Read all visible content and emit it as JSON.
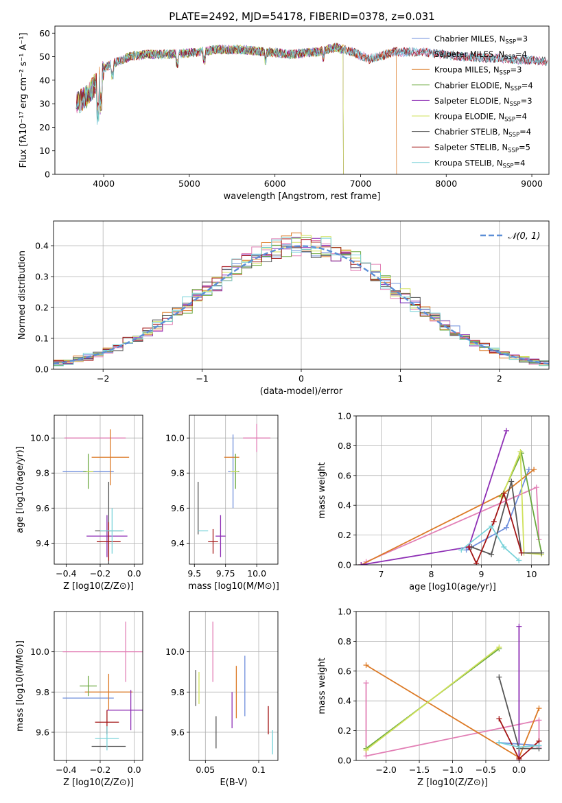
{
  "figure_title": "PLATE=2492, MJD=54178, FIBERID=0378, z=0.031",
  "colors": {
    "Chabrier MILES": "#6f8fdc",
    "Salpeter MILES": "#e27fb5",
    "Kroupa MILES": "#dc7a26",
    "Chabrier ELODIE": "#6aa83e",
    "Salpeter ELODIE": "#8e2fb5",
    "Kroupa ELODIE": "#cfe15a",
    "Chabrier STELIB": "#555555",
    "Salpeter STELIB": "#a31515",
    "Kroupa STELIB": "#78d2d9",
    "normal": "#5b8ed6"
  },
  "chart_data": [
    {
      "id": "spectrum",
      "type": "line",
      "title": "PLATE=2492, MJD=54178, FIBERID=0378, z=0.031",
      "xlabel": "wavelength [Angstrom, rest frame]",
      "ylabel": "Flux [fλ10⁻¹⁷ erg cm⁻² s⁻¹ A⁻¹]",
      "xlim": [
        3430,
        9200
      ],
      "ylim": [
        0,
        63
      ],
      "xticks": [
        4000,
        5000,
        6000,
        7000,
        8000,
        9000
      ],
      "yticks": [
        0,
        10,
        20,
        30,
        40,
        50,
        60
      ],
      "grid": false,
      "legend_position": "top-right",
      "spectrum_x_range": [
        3680,
        9180
      ],
      "continuum": [
        [
          3680,
          30
        ],
        [
          3800,
          33
        ],
        [
          3900,
          38
        ],
        [
          4000,
          45
        ],
        [
          4100,
          47
        ],
        [
          4300,
          50
        ],
        [
          4500,
          51
        ],
        [
          4800,
          51
        ],
        [
          5100,
          52
        ],
        [
          5300,
          53
        ],
        [
          5600,
          53
        ],
        [
          5900,
          52
        ],
        [
          6200,
          51
        ],
        [
          6500,
          52
        ],
        [
          6700,
          54
        ],
        [
          6900,
          52
        ],
        [
          7100,
          49
        ],
        [
          7400,
          52
        ],
        [
          7700,
          52
        ],
        [
          8200,
          50
        ],
        [
          8700,
          49
        ],
        [
          9180,
          48
        ]
      ],
      "series": [
        {
          "name": "Chabrier MILES, N_SSP=3",
          "legend_text": "Chabrier MILES, N",
          "legend_sub": "SSP",
          "legend_tail": "=3",
          "end_x": 9180
        },
        {
          "name": "Salpeter MILES, N_SSP=4",
          "legend_text": "Salpeter MILES, N",
          "legend_sub": "SSP",
          "legend_tail": "=4",
          "end_x": 9180
        },
        {
          "name": "Kroupa MILES, N_SSP=3",
          "legend_text": "Kroupa MILES, N",
          "legend_sub": "SSP",
          "legend_tail": "=3",
          "end_x": 7420
        },
        {
          "name": "Chabrier ELODIE, N_SSP=4",
          "legend_text": "Chabrier ELODIE, N",
          "legend_sub": "SSP",
          "legend_tail": "=4",
          "end_x": 6800
        },
        {
          "name": "Salpeter ELODIE, N_SSP=3",
          "legend_text": "Salpeter ELODIE, N",
          "legend_sub": "SSP",
          "legend_tail": "=3",
          "end_x": 6800
        },
        {
          "name": "Kroupa ELODIE, N_SSP=4",
          "legend_text": "Kroupa ELODIE, N",
          "legend_sub": "SSP",
          "legend_tail": "=4",
          "end_x": 6800
        },
        {
          "name": "Chabrier STELIB, N_SSP=4",
          "legend_text": "Chabrier STELIB, N",
          "legend_sub": "SSP",
          "legend_tail": "=4",
          "end_x": 9180
        },
        {
          "name": "Salpeter STELIB, N_SSP=5",
          "legend_text": "Salpeter STELIB, N",
          "legend_sub": "SSP",
          "legend_tail": "=5",
          "end_x": 9180
        },
        {
          "name": "Kroupa STELIB, N_SSP=4",
          "legend_text": "Kroupa STELIB, N",
          "legend_sub": "SSP",
          "legend_tail": "=4",
          "end_x": 9180
        }
      ]
    },
    {
      "id": "residuals",
      "type": "line",
      "xlabel": "(data-model)/error",
      "ylabel": "Normed distribution",
      "xlim": [
        -2.5,
        2.5
      ],
      "ylim": [
        0,
        0.48
      ],
      "xticks": [
        -2,
        -1,
        0,
        1,
        2
      ],
      "yticks": [
        0.0,
        0.1,
        0.2,
        0.3,
        0.4
      ],
      "grid": true,
      "legend": [
        "𝒩(0, 1)"
      ],
      "legend_position": "top-right",
      "bins": {
        "start": -2.5,
        "width": 0.1,
        "count": 50
      }
    },
    {
      "id": "age-vs-Z",
      "type": "scatter",
      "xlabel": "Z [log10(Z/Z⊙)]",
      "ylabel": "age  [log10(age/yr)]",
      "xlim": [
        -0.47,
        0.05
      ],
      "ylim": [
        9.28,
        10.13
      ],
      "xticks": [
        -0.4,
        -0.2,
        0.0
      ],
      "yticks": [
        9.4,
        9.6,
        9.8,
        10.0
      ],
      "grid": true,
      "points": [
        {
          "model": "Chabrier MILES",
          "x": -0.27,
          "xerr": 0.15,
          "y": 9.81,
          "yerr": 0.0
        },
        {
          "model": "Salpeter MILES",
          "x": -0.23,
          "xerr": 0.18,
          "y": 10.0,
          "yerr": 0.0
        },
        {
          "model": "Kroupa MILES",
          "x": -0.14,
          "xerr": 0.11,
          "y": 9.89,
          "yerr": 0.16
        },
        {
          "model": "Chabrier ELODIE",
          "x": -0.27,
          "xerr": 0.03,
          "y": 9.81,
          "yerr": 0.1
        },
        {
          "model": "Salpeter ELODIE",
          "x": -0.16,
          "xerr": 0.12,
          "y": 9.44,
          "yerr": 0.12
        },
        {
          "model": "Kroupa ELODIE",
          "x": -0.26,
          "xerr": 0.02,
          "y": 9.81,
          "yerr": 0.0
        },
        {
          "model": "Chabrier STELIB",
          "x": -0.15,
          "xerr": 0.08,
          "y": 9.47,
          "yerr": 0.28
        },
        {
          "model": "Salpeter STELIB",
          "x": -0.15,
          "xerr": 0.07,
          "y": 9.41,
          "yerr": 0.11
        },
        {
          "model": "Kroupa STELIB",
          "x": -0.13,
          "xerr": 0.07,
          "y": 9.47,
          "yerr": 0.13
        }
      ]
    },
    {
      "id": "age-vs-mass",
      "type": "scatter",
      "xlabel": "mass [log10(M/M⊙)]",
      "ylabel": "",
      "xlim": [
        9.46,
        10.17
      ],
      "ylim": [
        9.28,
        10.13
      ],
      "xticks": [
        9.5,
        9.75,
        10.0
      ],
      "yticks": [
        9.4,
        9.6,
        9.8,
        10.0
      ],
      "grid": true,
      "points": [
        {
          "model": "Chabrier MILES",
          "x": 9.81,
          "xerr": 0.04,
          "y": 9.81,
          "yerr": 0.21
        },
        {
          "model": "Salpeter MILES",
          "x": 10.0,
          "xerr": 0.11,
          "y": 10.0,
          "yerr": 0.08
        },
        {
          "model": "Kroupa MILES",
          "x": 9.8,
          "xerr": 0.06,
          "y": 9.89,
          "yerr": 0.0
        },
        {
          "model": "Chabrier ELODIE",
          "x": 9.83,
          "xerr": 0.03,
          "y": 9.81,
          "yerr": 0.1
        },
        {
          "model": "Salpeter ELODIE",
          "x": 9.71,
          "xerr": 0.04,
          "y": 9.44,
          "yerr": 0.12
        },
        {
          "model": "Kroupa ELODIE",
          "x": 9.82,
          "xerr": 0.03,
          "y": 9.81,
          "yerr": 0.0
        },
        {
          "model": "Chabrier STELIB",
          "x": 9.53,
          "xerr": 0.0,
          "y": 9.6,
          "yerr": 0.15
        },
        {
          "model": "Salpeter STELIB",
          "x": 9.65,
          "xerr": 0.04,
          "y": 9.41,
          "yerr": 0.07
        },
        {
          "model": "Kroupa STELIB",
          "x": 9.57,
          "xerr": 0.04,
          "y": 9.47,
          "yerr": 0.0
        }
      ]
    },
    {
      "id": "weight-vs-age",
      "type": "line",
      "xlabel": "age  [log10(age/yr)]",
      "ylabel": "mass weight",
      "xlim": [
        6.5,
        10.35
      ],
      "ylim": [
        0,
        1.0
      ],
      "xticks": [
        7,
        8,
        9,
        10
      ],
      "yticks": [
        0.0,
        0.2,
        0.4,
        0.6,
        0.8,
        1.0
      ],
      "grid": true,
      "series": [
        {
          "model": "Chabrier MILES",
          "x": [
            8.7,
            9.5,
            9.95
          ],
          "y": [
            0.1,
            0.25,
            0.64
          ]
        },
        {
          "model": "Salpeter MILES",
          "x": [
            6.7,
            10.1,
            10.15
          ],
          "y": [
            0.02,
            0.52,
            0.17
          ]
        },
        {
          "model": "Kroupa MILES",
          "x": [
            6.6,
            9.45,
            10.05
          ],
          "y": [
            0.0,
            0.48,
            0.64
          ]
        },
        {
          "model": "Chabrier ELODIE",
          "x": [
            9.4,
            9.8,
            10.2
          ],
          "y": [
            0.46,
            0.75,
            0.08
          ]
        },
        {
          "model": "Salpeter ELODIE",
          "x": [
            6.6,
            8.75,
            9.5
          ],
          "y": [
            0.0,
            0.12,
            0.9
          ]
        },
        {
          "model": "Kroupa ELODIE",
          "x": [
            9.4,
            9.78,
            9.85,
            10.2
          ],
          "y": [
            0.45,
            0.76,
            0.08,
            0.07
          ]
        },
        {
          "model": "Chabrier STELIB",
          "x": [
            8.8,
            9.2,
            9.6,
            9.8,
            10.2
          ],
          "y": [
            0.12,
            0.07,
            0.56,
            0.08,
            0.08
          ]
        },
        {
          "model": "Salpeter STELIB",
          "x": [
            8.75,
            8.9,
            9.25,
            9.45,
            9.8
          ],
          "y": [
            0.12,
            0.01,
            0.29,
            0.48,
            0.08
          ]
        },
        {
          "model": "Kroupa STELIB",
          "x": [
            8.6,
            9.2,
            9.45,
            9.75
          ],
          "y": [
            0.1,
            0.26,
            0.12,
            0.03
          ]
        }
      ]
    },
    {
      "id": "mass-vs-Z",
      "type": "scatter",
      "xlabel": "Z [log10(Z/Z⊙)]",
      "ylabel": "mass [log10(M/M⊙)]",
      "xlim": [
        -0.47,
        0.05
      ],
      "ylim": [
        9.46,
        10.2
      ],
      "xticks": [
        -0.4,
        -0.2,
        0.0
      ],
      "yticks": [
        9.6,
        9.8,
        10.0
      ],
      "grid": true,
      "points": [
        {
          "model": "Chabrier MILES",
          "x": -0.27,
          "xerr": 0.15,
          "y": 9.77,
          "yerr": 0.0
        },
        {
          "model": "Salpeter MILES",
          "x": -0.05,
          "xerr": 0.37,
          "y": 10.0,
          "yerr": 0.15
        },
        {
          "model": "Kroupa MILES",
          "x": -0.15,
          "xerr": 0.14,
          "y": 9.8,
          "yerr": 0.09
        },
        {
          "model": "Chabrier ELODIE",
          "x": -0.27,
          "xerr": 0.05,
          "y": 9.83,
          "yerr": 0.05
        },
        {
          "model": "Salpeter ELODIE",
          "x": -0.02,
          "xerr": 0.14,
          "y": 9.71,
          "yerr": 0.1
        },
        {
          "model": "Kroupa ELODIE",
          "x": -0.26,
          "xerr": 0.0,
          "y": 9.82,
          "yerr": 0.0
        },
        {
          "model": "Chabrier STELIB",
          "x": -0.15,
          "xerr": 0.1,
          "y": 9.53,
          "yerr": 0.0
        },
        {
          "model": "Salpeter STELIB",
          "x": -0.16,
          "xerr": 0.07,
          "y": 9.65,
          "yerr": 0.06
        },
        {
          "model": "Kroupa STELIB",
          "x": -0.16,
          "xerr": 0.07,
          "y": 9.57,
          "yerr": 0.06
        }
      ]
    },
    {
      "id": "mass-vs-ebv",
      "type": "scatter",
      "xlabel": "E(B-V)",
      "ylabel": "",
      "xlim": [
        0.035,
        0.118
      ],
      "ylim": [
        9.46,
        10.2
      ],
      "xticks": [
        0.05,
        0.1
      ],
      "yticks": [
        9.6,
        9.8,
        10.0
      ],
      "grid": true,
      "points": [
        {
          "model": "Chabrier MILES",
          "x": 0.087,
          "xerr": 0.0,
          "y": 9.83,
          "yerr": 0.15
        },
        {
          "model": "Salpeter MILES",
          "x": 0.057,
          "xerr": 0.0,
          "y": 10.0,
          "yerr": 0.15
        },
        {
          "model": "Kroupa MILES",
          "x": 0.079,
          "xerr": 0.0,
          "y": 9.8,
          "yerr": 0.13
        },
        {
          "model": "Chabrier ELODIE",
          "x": 0.045,
          "xerr": 0.0,
          "y": 9.8,
          "yerr": 0.0
        },
        {
          "model": "Salpeter ELODIE",
          "x": 0.075,
          "xerr": 0.0,
          "y": 9.71,
          "yerr": 0.09
        },
        {
          "model": "Kroupa ELODIE",
          "x": 0.044,
          "xerr": 0.0,
          "y": 9.82,
          "yerr": 0.08
        },
        {
          "model": "Chabrier STELIB",
          "x": 0.041,
          "xerr": 0.0,
          "y": 9.82,
          "yerr": 0.09
        },
        {
          "model": "Salpeter STELIB",
          "x": 0.109,
          "xerr": 0.0,
          "y": 9.66,
          "yerr": 0.07
        },
        {
          "model": "Kroupa STELIB",
          "x": 0.113,
          "xerr": 0.0,
          "y": 9.55,
          "yerr": 0.06
        }
      ],
      "extra_points": [
        {
          "model": "Chabrier STELIB",
          "x": 0.06,
          "xerr": 0.0,
          "y": 9.6,
          "yerr": 0.08
        }
      ]
    },
    {
      "id": "weight-vs-Z",
      "type": "line",
      "xlabel": "Z [log10(Z/Z⊙)]",
      "ylabel": "mass weight",
      "xlim": [
        -2.45,
        0.45
      ],
      "ylim": [
        0,
        1.0
      ],
      "xticks": [
        -2.0,
        -1.5,
        -1.0,
        -0.5,
        0.0
      ],
      "yticks": [
        0.0,
        0.2,
        0.4,
        0.6,
        0.8,
        1.0
      ],
      "grid": true,
      "series": [
        {
          "model": "Chabrier MILES",
          "x": [
            -0.3,
            0.3
          ],
          "y": [
            0.12,
            0.1
          ]
        },
        {
          "model": "Salpeter MILES",
          "x": [
            -2.3,
            -2.3,
            0.3,
            0.3
          ],
          "y": [
            0.52,
            0.03,
            0.27,
            0.09
          ]
        },
        {
          "model": "Kroupa MILES",
          "x": [
            -2.3,
            0.0,
            0.3
          ],
          "y": [
            0.64,
            0.02,
            0.35
          ]
        },
        {
          "model": "Chabrier ELODIE",
          "x": [
            -2.3,
            -0.3
          ],
          "y": [
            0.08,
            0.75
          ]
        },
        {
          "model": "Salpeter ELODIE",
          "x": [
            0.0,
            0.0
          ],
          "y": [
            0.9,
            0.0
          ]
        },
        {
          "model": "Kroupa ELODIE",
          "x": [
            -2.3,
            -0.3
          ],
          "y": [
            0.07,
            0.76
          ]
        },
        {
          "model": "Chabrier STELIB",
          "x": [
            -0.3,
            0.0,
            0.3
          ],
          "y": [
            0.56,
            0.08,
            0.08
          ]
        },
        {
          "model": "Salpeter STELIB",
          "x": [
            -0.3,
            0.0,
            0.3
          ],
          "y": [
            0.28,
            0.01,
            0.13
          ]
        },
        {
          "model": "Kroupa STELIB",
          "x": [
            -0.3,
            0.0,
            0.3
          ],
          "y": [
            0.12,
            0.09,
            0.1
          ]
        }
      ]
    }
  ]
}
